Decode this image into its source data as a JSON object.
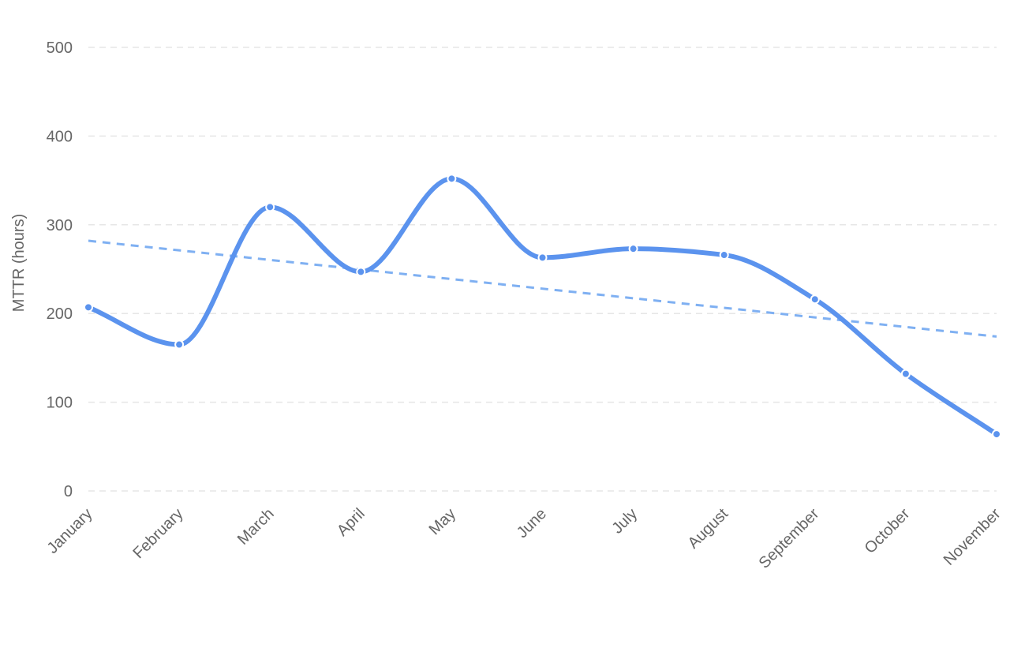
{
  "chart_data": {
    "type": "line",
    "title": "",
    "xlabel": "",
    "ylabel": "MTTR (hours)",
    "categories": [
      "January",
      "February",
      "March",
      "April",
      "May",
      "June",
      "July",
      "August",
      "September",
      "October",
      "November"
    ],
    "series": [
      {
        "values": [
          207,
          165,
          320,
          247,
          352,
          263,
          273,
          266,
          216,
          132,
          64
        ],
        "color": "#5b93ee",
        "smooth": true,
        "markers": true
      }
    ],
    "trendline": {
      "style": "dashed",
      "color": "#7fb0f2",
      "start": 282,
      "end": 174
    },
    "ylim": [
      0,
      500
    ],
    "yticks": [
      0,
      100,
      200,
      300,
      400,
      500
    ],
    "grid": true,
    "legend": "none"
  }
}
